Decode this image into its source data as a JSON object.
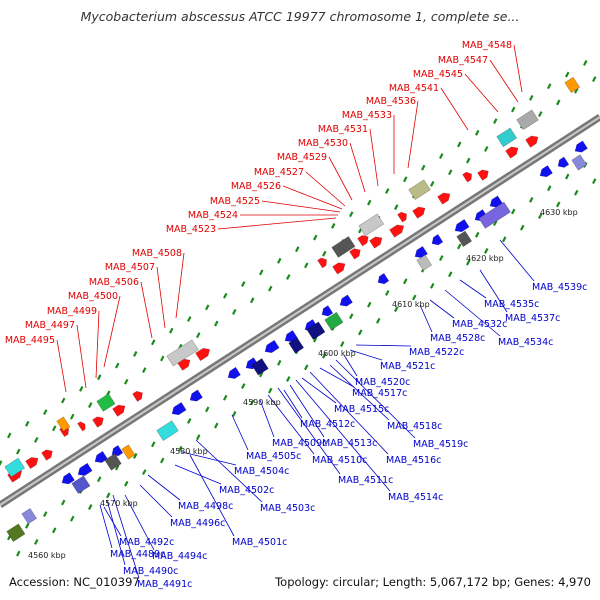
{
  "title": "Mycobacterium abscessus ATCC 19977 chromosome 1, complete se...",
  "footer": {
    "accession": "Accession: NC_010397",
    "summary": "Topology: circular; Length: 5,067,172 bp; Genes: 4,970"
  },
  "kbp_ticks": [
    "4560 kbp",
    "4570 kbp",
    "4580 kbp",
    "4590 kbp",
    "4600 kbp",
    "4610 kbp",
    "4620 kbp",
    "4630 kbp"
  ],
  "forward_genes": [
    "MAB_4495",
    "MAB_4497",
    "MAB_4499",
    "MAB_4500",
    "MAB_4506",
    "MAB_4507",
    "MAB_4508",
    "MAB_4523",
    "MAB_4524",
    "MAB_4525",
    "MAB_4526",
    "MAB_4527",
    "MAB_4529",
    "MAB_4530",
    "MAB_4531",
    "MAB_4533",
    "MAB_4536",
    "MAB_4541",
    "MAB_4545",
    "MAB_4547",
    "MAB_4548"
  ],
  "reverse_genes": [
    "MAB_4489c",
    "MAB_4490c",
    "MAB_4491c",
    "MAB_4492c",
    "MAB_4494c",
    "MAB_4496c",
    "MAB_4498c",
    "MAB_4501c",
    "MAB_4502c",
    "MAB_4503c",
    "MAB_4504c",
    "MAB_4505c",
    "MAB_4509c",
    "MAB_4510c",
    "MAB_4511c",
    "MAB_4512c",
    "MAB_4513c",
    "MAB_4514c",
    "MAB_4515c",
    "MAB_4516c",
    "MAB_4517c",
    "MAB_4518c",
    "MAB_4519c",
    "MAB_4520c",
    "MAB_4521c",
    "MAB_4522c",
    "MAB_4528c",
    "MAB_4532c",
    "MAB_4534c",
    "MAB_4535c",
    "MAB_4537c",
    "MAB_4539c"
  ],
  "colors": {
    "forward_label": "#e00000",
    "reverse_label": "#0000cc",
    "forward_gene": "#ff1111",
    "reverse_gene": "#1111ee",
    "backbone": "#9a9a9a",
    "dots": "#1a8a1a"
  }
}
